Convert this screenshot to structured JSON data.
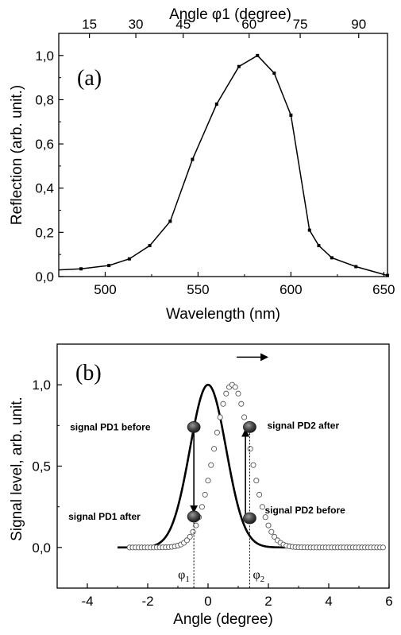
{
  "chart_data": [
    {
      "panel": "(a)",
      "type": "line",
      "xlabel": "Wavelength (nm)",
      "ylabel": "Reflection (arb. unit.)",
      "top_axis": {
        "label": "Angle φ1 (degree)",
        "tick_labels": [
          "15",
          "30",
          "45",
          "60",
          "75",
          "90"
        ],
        "tick_wavelengths": [
          491.5,
          516.5,
          542,
          577.5,
          605,
          636.5
        ]
      },
      "xlim": [
        475,
        652
      ],
      "ylim": [
        0,
        1.1
      ],
      "x_ticks": [
        500,
        550,
        600,
        650
      ],
      "x_tick_labels": [
        "500",
        "550",
        "600",
        "650"
      ],
      "y_ticks": [
        0,
        0.2,
        0.4,
        0.6,
        0.8,
        1.0
      ],
      "y_tick_labels": [
        "0,0",
        "0,2",
        "0,4",
        "0,6",
        "0,8",
        "1,0"
      ],
      "series": [
        {
          "x": [
            475,
            487,
            502,
            513,
            524,
            535,
            547,
            560,
            572,
            582,
            591,
            600,
            610,
            615,
            622,
            635,
            652
          ],
          "y": [
            0.03,
            0.035,
            0.05,
            0.08,
            0.14,
            0.25,
            0.53,
            0.78,
            0.95,
            1.0,
            0.92,
            0.73,
            0.21,
            0.14,
            0.085,
            0.045,
            0.005
          ]
        }
      ]
    },
    {
      "panel": "(b)",
      "type": "line",
      "xlabel": "Angle (degree)",
      "ylabel": "Signal level, arb. unit.",
      "xlim": [
        -5,
        6
      ],
      "ylim": [
        -0.25,
        1.25
      ],
      "x_ticks": [
        -4,
        -2,
        0,
        2,
        4,
        6
      ],
      "x_tick_labels": [
        "-4",
        "-2",
        "0",
        "2",
        "4",
        "6"
      ],
      "y_ticks": [
        0,
        0.5,
        1.0
      ],
      "y_tick_labels": [
        "0,0",
        "0,5",
        "1,0"
      ],
      "series": [
        {
          "style": "solid-line",
          "center": 0,
          "sigma": 0.6,
          "x_range": [
            -3,
            5.8
          ],
          "peak": 1.0
        },
        {
          "style": "open-circles",
          "center": 0.8,
          "sigma": 0.6,
          "x_range": [
            -2.6,
            5.8
          ],
          "peak": 1.0
        }
      ],
      "markers": [
        {
          "label": "signal PD1 before",
          "x": -0.47,
          "y": 0.74
        },
        {
          "label": "signal PD1 after",
          "x": -0.47,
          "y": 0.19
        },
        {
          "label": "signal PD2 after",
          "x": 1.38,
          "y": 0.74
        },
        {
          "label": "signal PD2 before",
          "x": 1.38,
          "y": 0.18
        }
      ],
      "arrows": [
        {
          "from": [
            -0.47,
            0.72
          ],
          "to": [
            -0.47,
            0.22
          ]
        },
        {
          "from": [
            1.24,
            0.19
          ],
          "to": [
            1.24,
            0.72
          ]
        }
      ],
      "guide_lines": [
        {
          "label": "φ1",
          "x": -0.47
        },
        {
          "label": "φ2",
          "x": 1.38
        }
      ],
      "shift_arrow": {
        "from_x": 0.95,
        "to_x": 1.95,
        "y": 1.17
      }
    }
  ]
}
